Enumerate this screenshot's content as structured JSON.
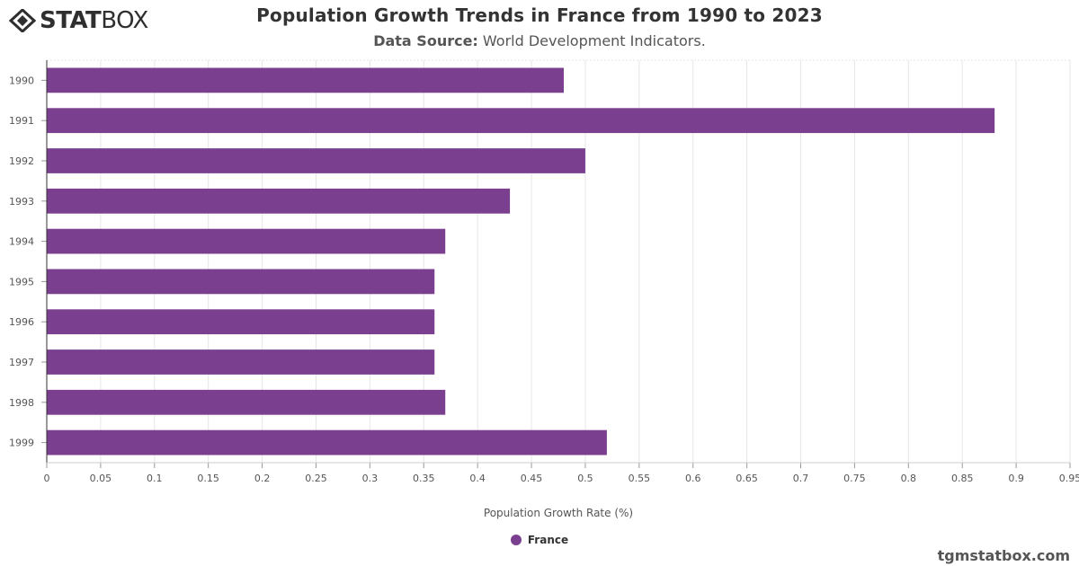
{
  "logo": {
    "bold": "STAT",
    "light": "BOX",
    "icon": "diamond-logo-icon"
  },
  "title": "Population Growth Trends in France from 1990 to 2023",
  "subtitle": {
    "label": "Data Source:",
    "text": "World Development Indicators."
  },
  "watermark": "tgmstatbox.com",
  "legend": {
    "label": "France",
    "color": "#7b3f8f"
  },
  "chart_data": {
    "type": "bar",
    "orientation": "horizontal",
    "categories": [
      "1990",
      "1991",
      "1992",
      "1993",
      "1994",
      "1995",
      "1996",
      "1997",
      "1998",
      "1999"
    ],
    "series": [
      {
        "name": "France",
        "values": [
          0.48,
          0.88,
          0.5,
          0.43,
          0.37,
          0.36,
          0.36,
          0.36,
          0.37,
          0.52
        ],
        "color": "#7b3f8f"
      }
    ],
    "xlabel": "Population Growth Rate (%)",
    "ylabel": "",
    "xlim": [
      0,
      0.95
    ],
    "xticks": [
      "0",
      "0.05",
      "0.1",
      "0.15",
      "0.2",
      "0.25",
      "0.3",
      "0.35",
      "0.4",
      "0.45",
      "0.5",
      "0.55",
      "0.6",
      "0.65",
      "0.7",
      "0.75",
      "0.8",
      "0.85",
      "0.9",
      "0.95"
    ],
    "grid": true,
    "legend_position": "bottom-center"
  }
}
